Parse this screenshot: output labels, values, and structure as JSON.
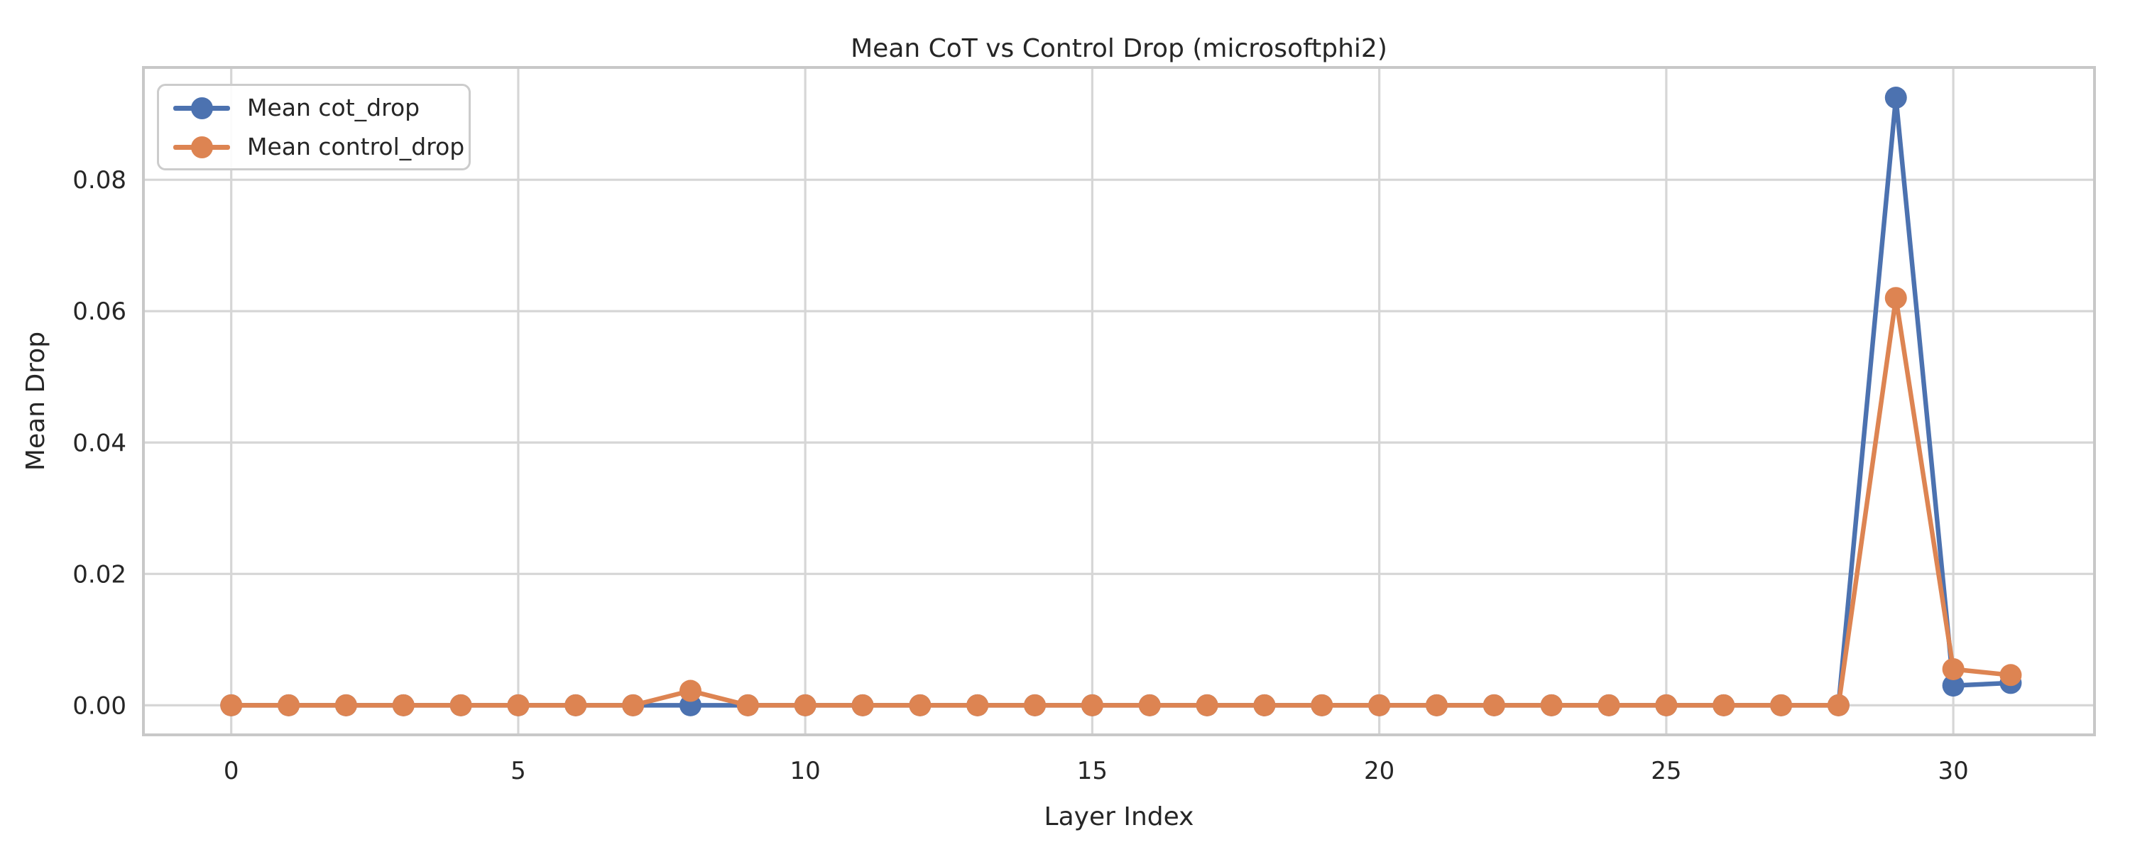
{
  "figure": {
    "background": "#ffffff",
    "text_color": "#262626",
    "grid_color": "#d6d6d6",
    "spine_color": "#c8c8c8"
  },
  "chart_data": {
    "type": "line",
    "title": "Mean CoT vs Control Drop (microsoftphi2)",
    "xlabel": "Layer Index",
    "ylabel": "Mean Drop",
    "x": [
      0,
      1,
      2,
      3,
      4,
      5,
      6,
      7,
      8,
      9,
      10,
      11,
      12,
      13,
      14,
      15,
      16,
      17,
      18,
      19,
      20,
      21,
      22,
      23,
      24,
      25,
      26,
      27,
      28,
      29,
      30,
      31
    ],
    "series": [
      {
        "name": "Mean cot_drop",
        "color": "#4C72B0",
        "values": [
          0,
          0,
          0,
          0,
          0,
          0,
          0,
          0,
          0,
          0,
          0,
          0,
          0,
          0,
          0,
          0,
          0,
          0,
          0,
          0,
          0,
          0,
          0,
          0,
          0,
          0,
          0,
          0,
          0,
          0.0925,
          0.003,
          0.0034
        ]
      },
      {
        "name": "Mean control_drop",
        "color": "#DD8452",
        "values": [
          0,
          0,
          0,
          0,
          0,
          0,
          0,
          0,
          0.0022,
          0,
          0,
          0,
          0,
          0,
          0,
          0,
          0,
          0,
          0,
          0,
          0,
          0,
          0,
          0,
          0,
          0,
          0,
          0,
          0,
          0.062,
          0.0055,
          0.0046
        ]
      }
    ],
    "xlim": [
      -1.53,
      32.46
    ],
    "ylim": [
      -0.0045,
      0.0971
    ],
    "xticks": [
      0,
      5,
      10,
      15,
      20,
      25,
      30
    ],
    "xtick_labels": [
      "0",
      "5",
      "10",
      "15",
      "20",
      "25",
      "30"
    ],
    "yticks": [
      0.0,
      0.02,
      0.04,
      0.06,
      0.08
    ],
    "ytick_labels": [
      "0.00",
      "0.02",
      "0.04",
      "0.06",
      "0.08"
    ],
    "grid": true,
    "legend_position": "upper left",
    "marker": "o",
    "line_width": 6.5,
    "marker_radius": 15.5
  }
}
